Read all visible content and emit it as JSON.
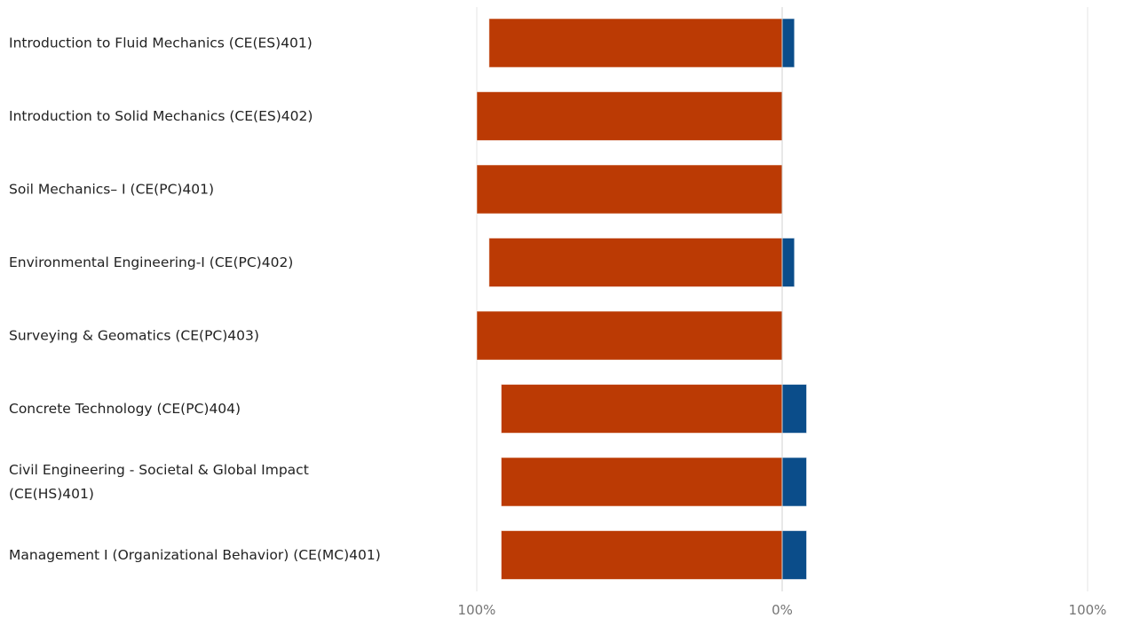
{
  "chart_data": {
    "type": "bar",
    "orientation": "horizontal-diverging",
    "categories": [
      "Introduction to Fluid Mechanics (CE(ES)401)",
      "Introduction to Solid Mechanics (CE(ES)402)",
      "Soil Mechanics– I (CE(PC)401)",
      "Environmental Engineering-I (CE(PC)402)",
      "Surveying & Geomatics (CE(PC)403)",
      "Concrete Technology (CE(PC)404)",
      "Civil Engineering - Societal & Global Impact (CE(HS)401)",
      "Management I (Organizational Behavior) (CE(MC)401)"
    ],
    "series": [
      {
        "side": "left",
        "color": "#bb3a04",
        "values": [
          96,
          100,
          100,
          96,
          100,
          92,
          92,
          92
        ]
      },
      {
        "side": "right",
        "color": "#0b4d8a",
        "values": [
          4,
          0,
          0,
          4,
          0,
          8,
          8,
          8
        ]
      }
    ],
    "x_ticks": [
      "100%",
      "0%",
      "100%"
    ],
    "xlim": [
      -100,
      100
    ],
    "grid": true,
    "legend": "none"
  }
}
